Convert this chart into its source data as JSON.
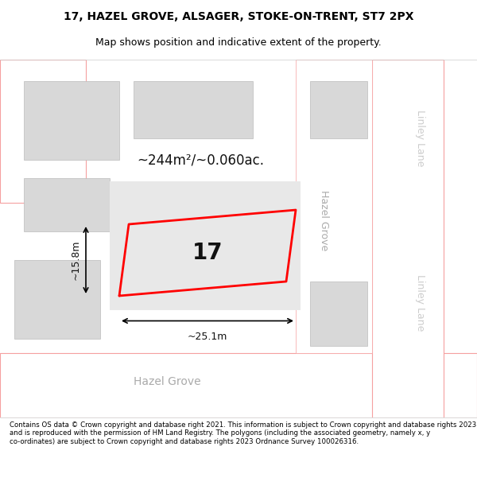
{
  "title_line1": "17, HAZEL GROVE, ALSAGER, STOKE-ON-TRENT, ST7 2PX",
  "title_line2": "Map shows position and indicative extent of the property.",
  "footer_text": "Contains OS data © Crown copyright and database right 2021. This information is subject to Crown copyright and database rights 2023 and is reproduced with the permission of HM Land Registry. The polygons (including the associated geometry, namely x, y co-ordinates) are subject to Crown copyright and database rights 2023 Ordnance Survey 100026316.",
  "bg_color": "#f5f0f0",
  "map_bg": "#f0eded",
  "road_fill": "#ffffff",
  "building_fill": "#d8d8d8",
  "plot_fill": "#e8e4e4",
  "red_outline": "#ff0000",
  "light_red": "#f5a0a0",
  "area_label": "~244m²/~0.060ac.",
  "number_label": "17",
  "width_label": "~25.1m",
  "height_label": "~15.8m",
  "street_hazel_grove_bottom": "Hazel Grove",
  "street_hazel_grove_right": "Hazel Grove",
  "street_linley_lane_top": "Linley Lane",
  "street_linley_lane_bottom": "Linley Lane"
}
